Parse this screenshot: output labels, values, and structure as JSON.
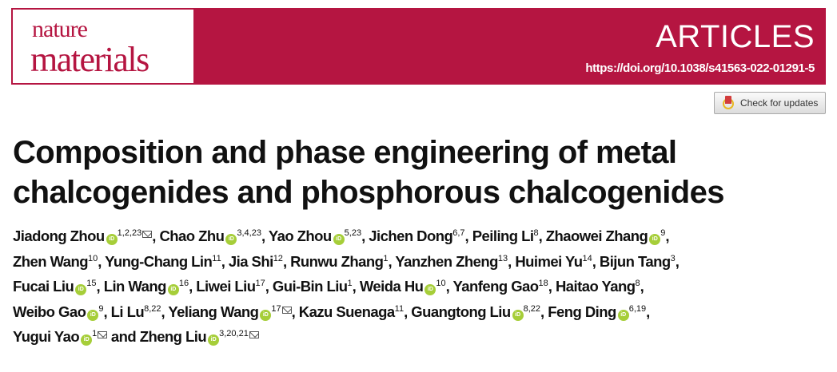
{
  "header": {
    "journal_line1": "nature",
    "journal_line2": "materials",
    "section": "ARTICLES",
    "doi": "https://doi.org/10.1038/s41563-022-01291-5",
    "brand_color": "#b51541"
  },
  "check_updates": {
    "label": "Check for updates",
    "icon": "crossmark-icon"
  },
  "title": "Composition and phase engineering of metal chalcogenides and phosphorous chalcogenides",
  "authors": [
    {
      "name": "Jiadong Zhou",
      "orcid": true,
      "affil": "1,2,23",
      "email": true
    },
    {
      "name": "Chao Zhu",
      "orcid": true,
      "affil": "3,4,23"
    },
    {
      "name": "Yao Zhou",
      "orcid": true,
      "affil": "5,23"
    },
    {
      "name": "Jichen Dong",
      "affil": "6,7"
    },
    {
      "name": "Peiling Li",
      "affil": "8"
    },
    {
      "name": "Zhaowei Zhang",
      "orcid": true,
      "affil": "9"
    },
    {
      "name": "Zhen Wang",
      "affil": "10",
      "newline": true
    },
    {
      "name": "Yung-Chang Lin",
      "affil": "11"
    },
    {
      "name": "Jia Shi",
      "affil": "12"
    },
    {
      "name": "Runwu Zhang",
      "affil": "1"
    },
    {
      "name": "Yanzhen Zheng",
      "affil": "13"
    },
    {
      "name": "Huimei Yu",
      "affil": "14"
    },
    {
      "name": "Bijun Tang",
      "affil": "3"
    },
    {
      "name": "Fucai Liu",
      "orcid": true,
      "affil": "15",
      "newline": true
    },
    {
      "name": "Lin Wang",
      "orcid": true,
      "affil": "16"
    },
    {
      "name": "Liwei Liu",
      "affil": "17"
    },
    {
      "name": "Gui-Bin Liu",
      "affil": "1"
    },
    {
      "name": "Weida Hu",
      "orcid": true,
      "affil": "10"
    },
    {
      "name": "Yanfeng Gao",
      "affil": "18"
    },
    {
      "name": "Haitao Yang",
      "affil": "8"
    },
    {
      "name": "Weibo Gao",
      "orcid": true,
      "affil": "9",
      "newline": true
    },
    {
      "name": "Li Lu",
      "affil": "8,22"
    },
    {
      "name": "Yeliang Wang",
      "orcid": true,
      "affil": "17",
      "email": true
    },
    {
      "name": "Kazu Suenaga",
      "affil": "11"
    },
    {
      "name": "Guangtong Liu",
      "orcid": true,
      "affil": "8,22"
    },
    {
      "name": "Feng Ding",
      "orcid": true,
      "affil": "6,19"
    },
    {
      "name": "Yugui Yao",
      "orcid": true,
      "affil": "1",
      "email": true,
      "newline": true
    },
    {
      "name": "Zheng Liu",
      "orcid": true,
      "affil": "3,20,21",
      "email": true
    }
  ],
  "and_label": "and",
  "orcid_label": "iD"
}
